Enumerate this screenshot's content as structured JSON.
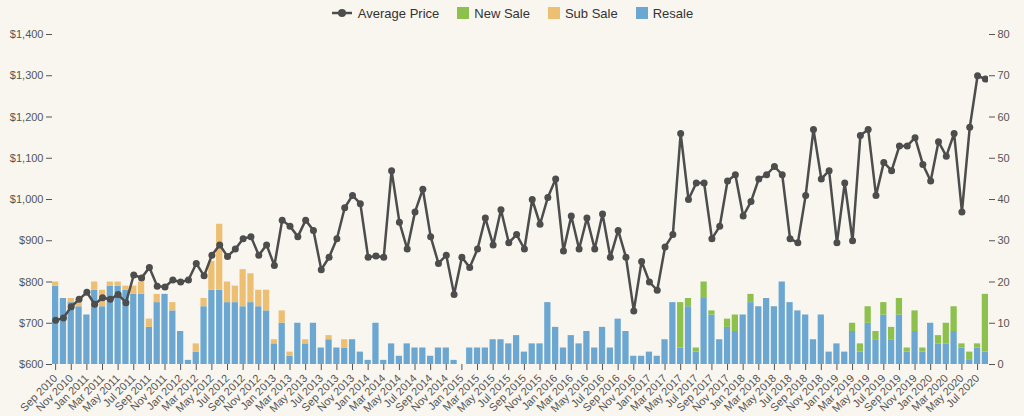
{
  "chart_data": {
    "type": "bar",
    "stacked": true,
    "legend": "top",
    "grid": false,
    "categories": [
      "Sep 2010",
      null,
      "Nov 2010",
      null,
      "Jan 2011",
      null,
      "Mar 2011",
      null,
      "May 2011",
      null,
      "Jul 2011",
      null,
      "Sep 2011",
      null,
      "Nov 2011",
      null,
      "Jan 2012",
      null,
      "Mar 2012",
      null,
      "May 2012",
      null,
      "Jul 2012",
      null,
      "Sep 2012",
      null,
      "Nov 2012",
      null,
      "Jan 2013",
      null,
      "Mar 2013",
      null,
      "May 2013",
      null,
      "Jul 2013",
      null,
      "Sep 2013",
      null,
      "Nov 2013",
      null,
      "Jan 2014",
      null,
      "Mar 2014",
      null,
      "May 2014",
      null,
      "Jul 2014",
      null,
      "Sep 2014",
      null,
      "Nov 2014",
      null,
      "Jan 2015",
      null,
      "Mar 2015",
      null,
      "May 2015",
      null,
      "Jul 2015",
      null,
      "Sep 2015",
      null,
      "Nov 2015",
      null,
      "Jan 2016",
      null,
      "Mar 2016",
      null,
      "May 2016",
      null,
      "Jul 2016",
      null,
      "Sep 2016",
      null,
      "Nov 2016",
      null,
      "Jan 2017",
      null,
      "Mar 2017",
      null,
      "May 2017",
      null,
      "Jul 2017",
      null,
      "Sep 2017",
      null,
      "Nov 2017",
      null,
      "Jan 2018",
      null,
      "Mar 2018",
      null,
      "May 2018",
      null,
      "Jul 2018",
      null,
      "Sep 2018",
      null,
      "Nov 2018",
      null,
      "Jan 2019",
      null,
      "Mar 2019",
      null,
      "May 2019",
      null,
      "Jul 2019",
      null,
      "Sep 2019",
      null,
      "Nov 2019",
      null,
      "Jan 2020",
      null,
      "Mar 2020",
      null,
      "May 2020",
      null,
      "Jul 2020",
      null
    ],
    "ylim": [
      600,
      1400
    ],
    "yticks": [
      {
        "value": 600,
        "label": "$600"
      },
      {
        "value": 700,
        "label": "$700"
      },
      {
        "value": 800,
        "label": "$800"
      },
      {
        "value": 900,
        "label": "$900"
      },
      {
        "value": 1000,
        "label": "$1,000"
      },
      {
        "value": 1100,
        "label": "$1,100"
      },
      {
        "value": 1200,
        "label": "$1,200"
      },
      {
        "value": 1300,
        "label": "$1,300"
      },
      {
        "value": 1400,
        "label": "$1,400"
      }
    ],
    "y2lim": [
      0,
      80
    ],
    "y2ticks": [
      0,
      10,
      20,
      30,
      40,
      50,
      60,
      70,
      80
    ],
    "series": [
      {
        "name": "Average Price",
        "type": "line",
        "axis": "y",
        "color": "#4d4d4d",
        "marker": "circle",
        "values": [
          707,
          713,
          740,
          758,
          775,
          746,
          762,
          758,
          770,
          750,
          817,
          810,
          835,
          790,
          788,
          805,
          800,
          805,
          845,
          815,
          865,
          890,
          862,
          880,
          905,
          910,
          865,
          890,
          840,
          950,
          935,
          910,
          950,
          925,
          830,
          860,
          905,
          980,
          1010,
          990,
          860,
          863,
          860,
          1070,
          945,
          880,
          970,
          1025,
          910,
          845,
          865,
          770,
          860,
          835,
          880,
          955,
          890,
          975,
          895,
          915,
          880,
          1000,
          940,
          1005,
          1050,
          875,
          960,
          880,
          955,
          880,
          965,
          860,
          925,
          860,
          730,
          850,
          800,
          780,
          885,
          915,
          1160,
          1000,
          1040,
          1040,
          905,
          935,
          1045,
          1060,
          960,
          995,
          1050,
          1060,
          1080,
          1060,
          905,
          895,
          1010,
          1170,
          1050,
          1070,
          895,
          1040,
          900,
          1155,
          1170,
          1010,
          1090,
          1070,
          1130,
          1130,
          1150,
          1085,
          1045,
          1140,
          1105,
          1160,
          970,
          1175,
          1300,
          1292
        ]
      },
      {
        "name": "New Sale",
        "type": "bar",
        "axis": "y2",
        "color": "#8dc04d",
        "values": [
          0,
          0,
          0,
          0,
          0,
          0,
          0,
          0,
          0,
          0,
          0,
          0,
          0,
          0,
          0,
          0,
          0,
          0,
          0,
          0,
          0,
          0,
          0,
          0,
          0,
          0,
          0,
          0,
          0,
          0,
          0,
          0,
          0,
          0,
          0,
          0,
          0,
          0,
          0,
          0,
          0,
          0,
          0,
          0,
          0,
          0,
          0,
          0,
          0,
          0,
          0,
          0,
          0,
          0,
          0,
          0,
          0,
          0,
          0,
          0,
          0,
          0,
          0,
          0,
          0,
          0,
          0,
          0,
          0,
          0,
          0,
          0,
          0,
          0,
          0,
          0,
          0,
          0,
          0,
          0,
          11,
          2,
          1,
          4,
          1,
          0,
          2,
          4,
          0,
          2,
          0,
          0,
          0,
          0,
          0,
          0,
          0,
          0,
          0,
          0,
          0,
          0,
          2,
          2,
          4,
          2,
          3,
          3,
          4,
          1,
          5,
          1,
          0,
          2,
          5,
          6,
          1,
          2,
          1,
          14
        ]
      },
      {
        "name": "Sub Sale",
        "type": "bar",
        "axis": "y2",
        "color": "#ecbf73",
        "values": [
          1,
          0,
          1,
          1,
          0,
          2,
          4,
          1,
          1,
          1,
          2,
          3,
          2,
          2,
          0,
          2,
          0,
          0,
          2,
          2,
          7,
          16,
          5,
          4,
          9,
          7,
          4,
          5,
          1,
          3,
          1,
          0,
          1,
          0,
          0,
          1,
          0,
          2,
          0,
          0,
          0,
          0,
          0,
          0,
          0,
          0,
          0,
          0,
          0,
          0,
          0,
          0,
          0,
          0,
          0,
          0,
          0,
          0,
          0,
          0,
          0,
          0,
          0,
          0,
          0,
          0,
          0,
          0,
          0,
          0,
          0,
          0,
          0,
          0,
          0,
          0,
          0,
          0,
          0,
          0,
          0,
          0,
          0,
          0,
          0,
          0,
          0,
          0,
          0,
          0,
          0,
          0,
          0,
          0,
          0,
          0,
          0,
          0,
          0,
          0,
          0,
          0,
          0,
          0,
          0,
          0,
          0,
          0,
          0,
          0,
          0,
          0,
          0,
          0,
          0,
          0,
          0,
          0,
          0,
          0
        ]
      },
      {
        "name": "Resale",
        "type": "bar",
        "axis": "y2",
        "color": "#6ba7d1",
        "values": [
          19,
          16,
          15,
          14,
          12,
          18,
          14,
          19,
          19,
          18,
          17,
          17,
          9,
          15,
          17,
          13,
          8,
          1,
          3,
          14,
          18,
          18,
          15,
          15,
          14,
          15,
          14,
          13,
          5,
          10,
          2,
          10,
          5,
          10,
          4,
          6,
          4,
          4,
          6,
          3,
          1,
          10,
          1,
          5,
          2,
          5,
          4,
          4,
          2,
          4,
          4,
          1,
          0,
          4,
          4,
          4,
          6,
          6,
          5,
          7,
          3,
          5,
          5,
          15,
          9,
          4,
          7,
          5,
          8,
          4,
          9,
          4,
          11,
          8,
          2,
          2,
          3,
          2,
          6,
          15,
          4,
          14,
          3,
          16,
          12,
          6,
          9,
          8,
          12,
          15,
          14,
          16,
          14,
          20,
          15,
          13,
          12,
          6,
          12,
          3,
          5,
          3,
          8,
          3,
          10,
          6,
          12,
          6,
          12,
          3,
          8,
          3,
          10,
          5,
          5,
          8,
          4,
          1,
          4,
          3
        ]
      }
    ]
  }
}
